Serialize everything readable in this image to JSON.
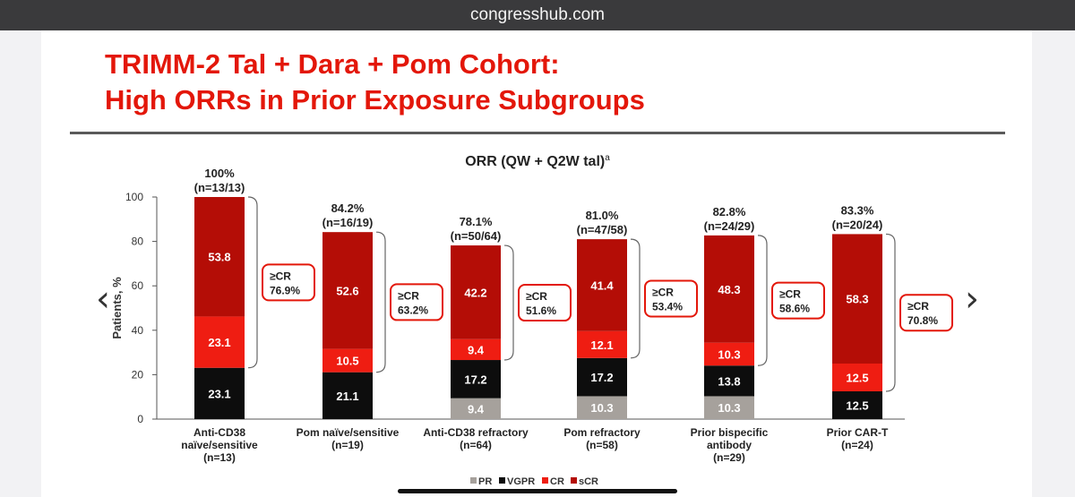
{
  "browser": {
    "url": "congresshub.com"
  },
  "slide": {
    "title_lines": [
      "TRIMM-2 Tal + Dara + Pom Cohort:",
      "High ORRs in Prior Exposure Subgroups"
    ]
  },
  "nav": {
    "prev_icon": "chevron-left-icon",
    "next_icon": "chevron-right-icon"
  },
  "chart_data": {
    "type": "bar",
    "stacked": true,
    "title": "ORR (QW + Q2W tal)",
    "title_superscript": "a",
    "ylabel": "Patients, %",
    "ylim": [
      0,
      100
    ],
    "yticks": [
      0,
      20,
      40,
      60,
      80,
      100
    ],
    "grid": false,
    "legend_position": "bottom",
    "categories": [
      [
        "Anti-CD38",
        "naïve/sensitive",
        "(n=13)"
      ],
      [
        "Pom naïve/sensitive",
        "(n=19)"
      ],
      [
        "Anti-CD38 refractory",
        "(n=64)"
      ],
      [
        "Pom refractory",
        "(n=58)"
      ],
      [
        "Prior bispecific",
        "antibody",
        "(n=29)"
      ],
      [
        "Prior CAR-T",
        "(n=24)"
      ]
    ],
    "series": [
      {
        "name": "PR",
        "color": "#a6a19c",
        "values": [
          0,
          0,
          9.4,
          10.3,
          10.3,
          0
        ]
      },
      {
        "name": "VGPR",
        "color": "#0d0d0d",
        "values": [
          23.1,
          21.1,
          17.2,
          17.2,
          13.8,
          12.5
        ]
      },
      {
        "name": "CR",
        "color": "#ef1d12",
        "values": [
          23.1,
          10.5,
          9.4,
          12.1,
          10.3,
          12.5
        ]
      },
      {
        "name": "sCR",
        "color": "#b40d06",
        "values": [
          53.8,
          52.6,
          42.2,
          41.4,
          48.3,
          58.3
        ]
      }
    ],
    "totals": [
      [
        "100%",
        "(n=13/13)"
      ],
      [
        "84.2%",
        "(n=16/19)"
      ],
      [
        "78.1%",
        "(n=50/64)"
      ],
      [
        "81.0%",
        "(n=47/58)"
      ],
      [
        "82.8%",
        "(n=24/29)"
      ],
      [
        "83.3%",
        "(n=20/24)"
      ]
    ],
    "cr_callouts": [
      [
        "≥CR",
        "76.9%"
      ],
      [
        "≥CR",
        "63.2%"
      ],
      [
        "≥CR",
        "51.6%"
      ],
      [
        "≥CR",
        "53.4%"
      ],
      [
        "≥CR",
        "58.6%"
      ],
      [
        "≥CR",
        "70.8%"
      ]
    ],
    "callout_border_color": "#e3170a"
  }
}
